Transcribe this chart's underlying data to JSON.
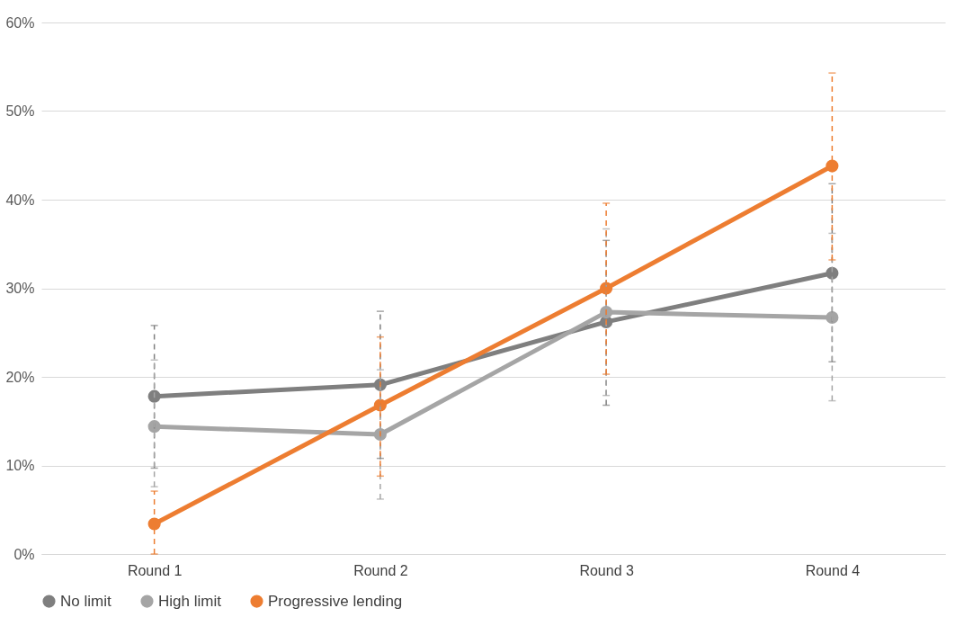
{
  "chart_data": {
    "type": "line",
    "categories": [
      "Round 1",
      "Round 2",
      "Round 3",
      "Round 4"
    ],
    "series": [
      {
        "name": "No limit",
        "color": "#7f7f7f",
        "values": [
          17.8,
          19.1,
          26.2,
          31.7
        ],
        "errors": [
          [
            9.7,
            25.8
          ],
          [
            10.8,
            27.4
          ],
          [
            16.8,
            35.4
          ],
          [
            21.7,
            41.8
          ]
        ]
      },
      {
        "name": "High limit",
        "color": "#a5a5a5",
        "values": [
          14.4,
          13.5,
          27.3,
          26.7
        ],
        "errors": [
          [
            7.6,
            21.9
          ],
          [
            6.2,
            20.8
          ],
          [
            17.9,
            36.7
          ],
          [
            17.3,
            36.2
          ]
        ]
      },
      {
        "name": "Progressive lending",
        "color": "#ed7d31",
        "values": [
          3.4,
          16.8,
          30.0,
          43.8
        ],
        "errors": [
          [
            0,
            7.1
          ],
          [
            8.8,
            24.5
          ],
          [
            20.3,
            39.6
          ],
          [
            33.2,
            54.3
          ]
        ]
      }
    ],
    "ylim": [
      0,
      60
    ],
    "yticks": [
      {
        "value": 0,
        "label": "0%"
      },
      {
        "value": 10,
        "label": "10%"
      },
      {
        "value": 20,
        "label": "20%"
      },
      {
        "value": 30,
        "label": "30%"
      },
      {
        "value": 40,
        "label": "40%"
      },
      {
        "value": 50,
        "label": "50%"
      },
      {
        "value": 60,
        "label": "60%"
      }
    ],
    "grid": "y",
    "legend": "bottom",
    "marker": "circle",
    "line_style": "solid"
  }
}
